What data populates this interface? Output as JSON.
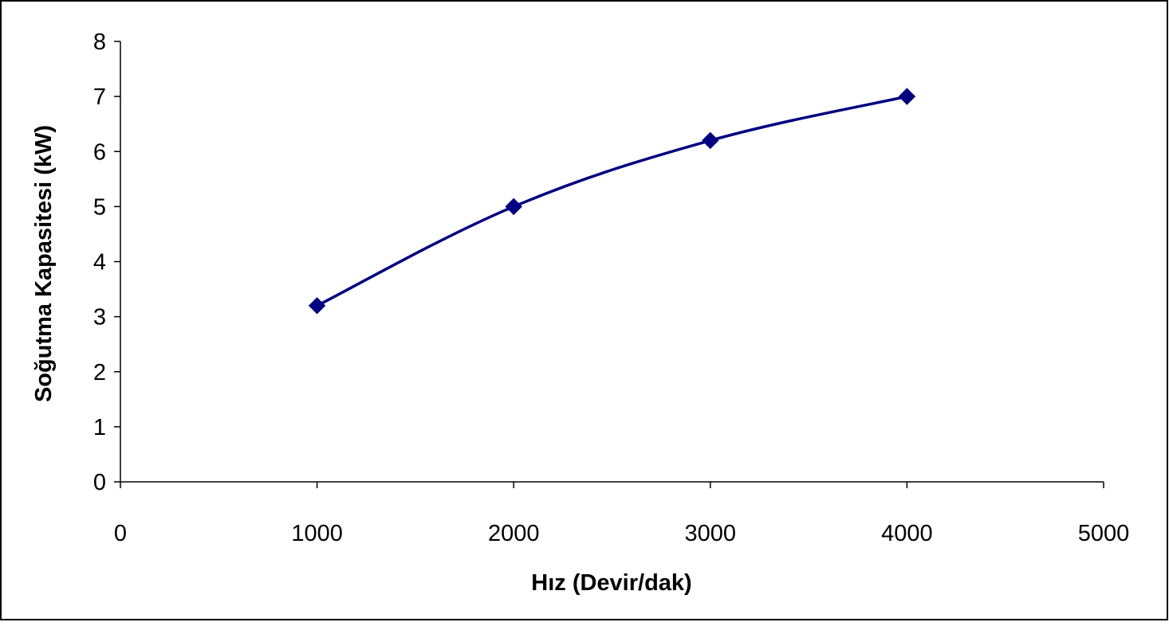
{
  "chart_data": {
    "type": "line",
    "title": "",
    "xlabel": "Hız (Devir/dak)",
    "ylabel": "Soğutma Kapasitesi (kW)",
    "xlim": [
      0,
      5000
    ],
    "ylim": [
      0,
      8
    ],
    "x_ticks": [
      0,
      1000,
      2000,
      3000,
      4000,
      5000
    ],
    "y_ticks": [
      0,
      1,
      2,
      3,
      4,
      5,
      6,
      7,
      8
    ],
    "grid": false,
    "legend": "none",
    "series": [
      {
        "x": [
          1000,
          2000,
          3000,
          4000
        ],
        "values": [
          3.2,
          5.0,
          6.2,
          7.0
        ],
        "color": "#000080",
        "marker": "diamond"
      }
    ]
  }
}
